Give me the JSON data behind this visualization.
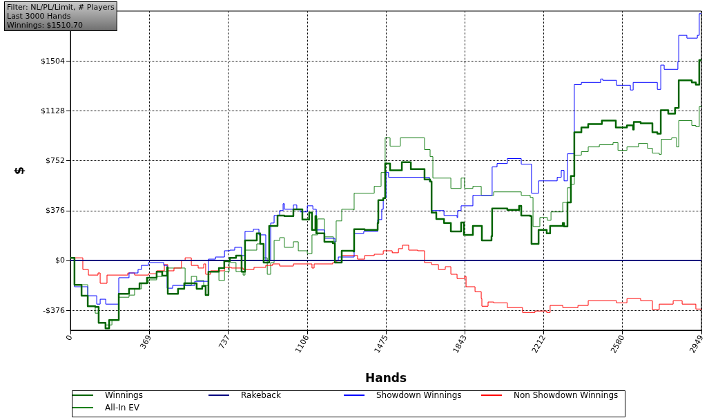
{
  "chart_data": {
    "type": "step",
    "xlabel": "Hands",
    "ylabel": "$",
    "annotations": [
      "Filter: NL/PL/Limit, # Players",
      "Last 3000 Hands",
      "Winnings: $1510.70"
    ],
    "xlim": [
      0,
      2949
    ],
    "xticks": [
      0,
      369,
      737,
      1106,
      1475,
      1843,
      2212,
      2580,
      2949
    ],
    "ylim": [
      -526,
      1880
    ],
    "yticks": [
      {
        "value": -376,
        "label": "-$376"
      },
      {
        "value": 0,
        "label": "$0"
      },
      {
        "value": 376,
        "label": "$376"
      },
      {
        "value": 752,
        "label": "$752"
      },
      {
        "value": 1128,
        "label": "$1128"
      },
      {
        "value": 1504,
        "label": "$1504"
      }
    ],
    "grid": true,
    "legend": "bottom",
    "line_style": "solid",
    "series": [
      {
        "name": "Winnings",
        "color": "#006400",
        "x": [
          0,
          19,
          52,
          81,
          116,
          132,
          164,
          181,
          226,
          274,
          323,
          358,
          403,
          429,
          452,
          455,
          503,
          532,
          565,
          590,
          616,
          632,
          645,
          694,
          719,
          745,
          774,
          800,
          816,
          871,
          887,
          903,
          929,
          968,
          1000,
          1042,
          1084,
          1116,
          1129,
          1145,
          1149,
          1187,
          1226,
          1236,
          1268,
          1323,
          1326,
          1375,
          1436,
          1439,
          1462,
          1471,
          1494,
          1549,
          1591,
          1649,
          1655,
          1681,
          1688,
          1710,
          1746,
          1778,
          1826,
          1839,
          1881,
          1923,
          1968,
          1971,
          2042,
          2097,
          2107,
          2149,
          2155,
          2188,
          2226,
          2242,
          2301,
          2307,
          2323,
          2339,
          2355,
          2388,
          2420,
          2484,
          2533,
          2549,
          2601,
          2630,
          2633,
          2665,
          2720,
          2743,
          2759,
          2794,
          2826,
          2843,
          2904,
          2923,
          2939,
          2949
        ],
        "values": [
          20,
          -183,
          -266,
          -345,
          -350,
          -470,
          -512,
          -449,
          -251,
          -214,
          -172,
          -130,
          -84,
          -115,
          -52,
          -251,
          -214,
          -172,
          -172,
          -214,
          -193,
          -261,
          -84,
          -57,
          -5,
          20,
          37,
          -84,
          151,
          204,
          125,
          -16,
          261,
          339,
          334,
          386,
          308,
          360,
          230,
          334,
          204,
          141,
          130,
          -16,
          73,
          68,
          235,
          230,
          282,
          454,
          470,
          731,
          679,
          741,
          689,
          689,
          611,
          595,
          360,
          313,
          282,
          219,
          287,
          193,
          261,
          151,
          183,
          392,
          381,
          412,
          339,
          334,
          125,
          230,
          204,
          261,
          282,
          256,
          438,
          637,
          966,
          1003,
          1029,
          1055,
          1055,
          1003,
          1018,
          987,
          1044,
          1034,
          966,
          955,
          1133,
          1107,
          1149,
          1358,
          1342,
          1326,
          1510,
          1510
        ]
      },
      {
        "name": "Rakeback",
        "color": "#000080",
        "x": [
          0,
          2949
        ],
        "values": [
          0,
          0
        ]
      },
      {
        "name": "Showdown Winnings",
        "color": "#0000ff",
        "x": [
          0,
          19,
          81,
          123,
          139,
          165,
          226,
          274,
          316,
          332,
          365,
          436,
          452,
          478,
          581,
          645,
          678,
          720,
          745,
          768,
          800,
          816,
          855,
          881,
          913,
          936,
          952,
          978,
          994,
          1000,
          1042,
          1058,
          1074,
          1107,
          1133,
          1149,
          1187,
          1236,
          1252,
          1326,
          1371,
          1436,
          1455,
          1462,
          1475,
          1487,
          1678,
          1688,
          1746,
          1807,
          1810,
          1826,
          1881,
          1971,
          1994,
          2042,
          2107,
          2155,
          2188,
          2275,
          2294,
          2307,
          2323,
          2355,
          2388,
          2478,
          2488,
          2552,
          2617,
          2630,
          2743,
          2759,
          2775,
          2839,
          2843,
          2881,
          2930,
          2939,
          2949
        ],
        "values": [
          20,
          -198,
          -266,
          -329,
          -292,
          -329,
          -130,
          -94,
          -68,
          -37,
          -16,
          -37,
          -209,
          -188,
          -157,
          10,
          26,
          73,
          78,
          99,
          37,
          219,
          235,
          193,
          0,
          282,
          339,
          376,
          428,
          386,
          418,
          386,
          366,
          412,
          386,
          230,
          167,
          0,
          26,
          204,
          219,
          308,
          386,
          470,
          663,
          627,
          595,
          376,
          339,
          324,
          376,
          412,
          491,
          705,
          731,
          768,
          726,
          507,
          600,
          627,
          679,
          600,
          804,
          1326,
          1342,
          1368,
          1358,
          1321,
          1285,
          1342,
          1290,
          1473,
          1441,
          1499,
          1697,
          1676,
          1697,
          1860,
          1860
        ]
      },
      {
        "name": "Non Showdown Winnings",
        "color": "#ff0000",
        "x": [
          0,
          58,
          84,
          129,
          139,
          171,
          268,
          300,
          365,
          403,
          439,
          455,
          484,
          519,
          536,
          565,
          597,
          623,
          632,
          655,
          720,
          752,
          807,
          858,
          913,
          945,
          978,
          1042,
          1129,
          1139,
          1226,
          1245,
          1268,
          1342,
          1375,
          1420,
          1462,
          1504,
          1533,
          1552,
          1581,
          1623,
          1655,
          1688,
          1720,
          1752,
          1778,
          1807,
          1842,
          1849,
          1891,
          1920,
          1923,
          1952,
          1978,
          2042,
          2113,
          2171,
          2226,
          2242,
          2301,
          2372,
          2420,
          2552,
          2601,
          2665,
          2720,
          2752,
          2817,
          2859,
          2923,
          2949
        ],
        "values": [
          20,
          -68,
          -110,
          -94,
          -172,
          -110,
          -94,
          -110,
          -100,
          -78,
          -31,
          -78,
          -57,
          0,
          20,
          -37,
          -57,
          -26,
          -104,
          -78,
          -52,
          -57,
          -68,
          -52,
          -37,
          -26,
          -42,
          -26,
          -57,
          -26,
          -16,
          0,
          37,
          10,
          37,
          47,
          73,
          58,
          89,
          115,
          78,
          73,
          -16,
          -31,
          -68,
          -47,
          -104,
          -136,
          -120,
          -198,
          -235,
          -287,
          -345,
          -313,
          -319,
          -355,
          -392,
          -381,
          -392,
          -339,
          -355,
          -339,
          -303,
          -319,
          -287,
          -303,
          -371,
          -329,
          -303,
          -329,
          -366,
          -371
        ]
      },
      {
        "name": "All-In EV",
        "color": "#1a801a",
        "x": [
          0,
          19,
          81,
          116,
          132,
          165,
          194,
          226,
          274,
          300,
          332,
          365,
          403,
          429,
          455,
          536,
          565,
          590,
          623,
          645,
          694,
          720,
          742,
          774,
          807,
          816,
          871,
          903,
          920,
          936,
          952,
          978,
          1000,
          1042,
          1065,
          1107,
          1129,
          1155,
          1187,
          1229,
          1242,
          1268,
          1323,
          1326,
          1420,
          1452,
          1471,
          1494,
          1542,
          1655,
          1681,
          1694,
          1778,
          1826,
          1842,
          1881,
          1920,
          1978,
          2107,
          2149,
          2162,
          2194,
          2229,
          2246,
          2301,
          2323,
          2339,
          2355,
          2388,
          2420,
          2472,
          2536,
          2559,
          2601,
          2655,
          2697,
          2720,
          2752,
          2762,
          2810,
          2833,
          2843,
          2904,
          2923,
          2939,
          2949
        ],
        "values": [
          20,
          -183,
          -345,
          -397,
          -470,
          -486,
          -449,
          -277,
          -261,
          -214,
          -172,
          -146,
          -120,
          -84,
          -57,
          -188,
          -120,
          -151,
          -188,
          -84,
          -151,
          -84,
          -16,
          -84,
          -110,
          78,
          125,
          20,
          -104,
          -16,
          151,
          172,
          99,
          141,
          73,
          52,
          193,
          313,
          178,
          141,
          298,
          386,
          381,
          507,
          559,
          663,
          924,
          862,
          924,
          836,
          783,
          621,
          543,
          621,
          543,
          559,
          491,
          517,
          491,
          475,
          256,
          324,
          303,
          366,
          438,
          548,
          574,
          794,
          820,
          856,
          872,
          888,
          830,
          856,
          882,
          846,
          809,
          800,
          914,
          924,
          856,
          1055,
          1018,
          1008,
          1159,
          1159
        ]
      }
    ]
  }
}
